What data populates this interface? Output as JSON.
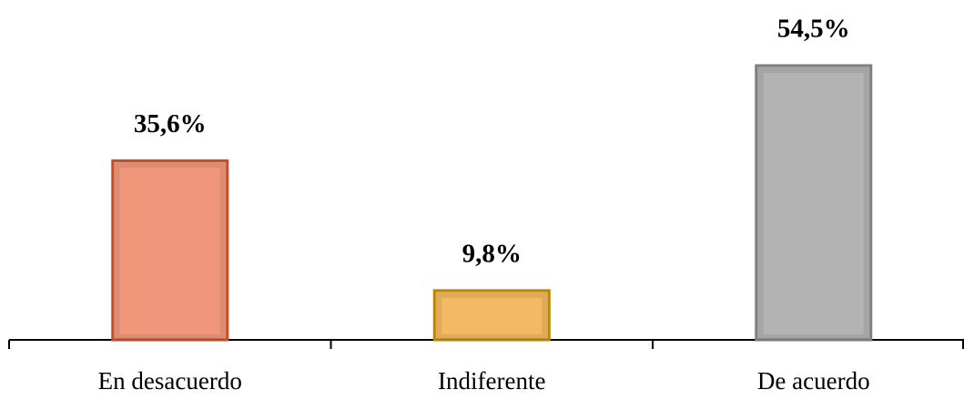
{
  "chart_data": {
    "type": "bar",
    "categories": [
      "En desacuerdo",
      "Indiferente",
      "De acuerdo"
    ],
    "values": [
      35.6,
      9.8,
      54.5
    ],
    "value_labels": [
      "35,6%",
      "9,8%",
      "54,5%"
    ],
    "colors": [
      "#f0977b",
      "#f4b963",
      "#b3b3b3"
    ],
    "edge_colors": [
      "#c0502c",
      "#b8860b",
      "#7f7f7f"
    ]
  }
}
